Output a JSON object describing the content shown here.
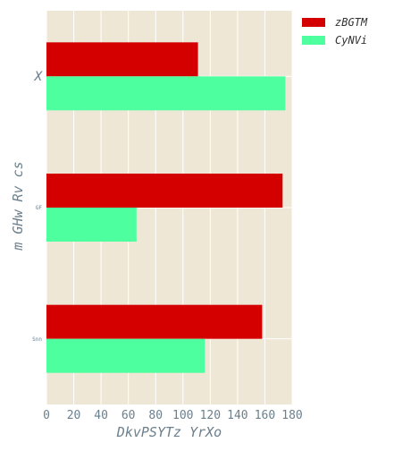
{
  "chart_data": {
    "type": "bar",
    "orientation": "horizontal",
    "categories": [
      "X",
      "GF",
      "Snn"
    ],
    "series": [
      {
        "name": "zBGTM",
        "values": [
          111,
          173,
          158
        ],
        "color": "#d40000"
      },
      {
        "name": "CyNVi",
        "values": [
          175,
          66,
          116
        ],
        "color": "#4dff9e"
      }
    ],
    "xlabel": "DkvPSYTz YrXo",
    "ylabel": "m GHw Rv  cs",
    "xlim": [
      0,
      180
    ],
    "xticks": [
      "0",
      "20",
      "40",
      "60",
      "80",
      "100",
      "120",
      "140",
      "160",
      "180"
    ],
    "grid": true,
    "legend": "top-right",
    "background": "#efe7d6"
  }
}
